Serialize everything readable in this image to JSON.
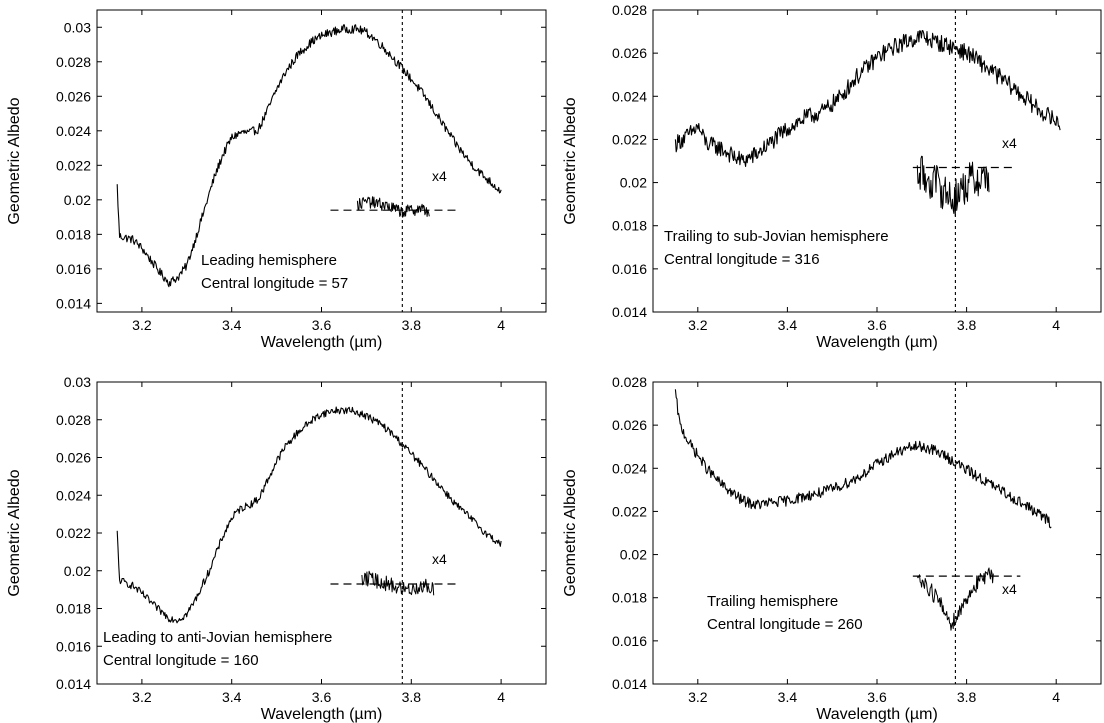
{
  "chart_data": [
    {
      "type": "line",
      "xlabel": "Wavelength (µm)",
      "ylabel": "Geometric Albedo",
      "xlim": [
        3.1,
        4.1
      ],
      "ylim": [
        0.0135,
        0.031
      ],
      "xticks": [
        "3.2",
        "3.4",
        "3.6",
        "3.8",
        "4"
      ],
      "yticks": [
        "0.014",
        "0.016",
        "0.018",
        "0.02",
        "0.022",
        "0.024",
        "0.026",
        "0.028",
        "0.03"
      ],
      "annotation_lines": [
        "Leading hemisphere",
        "Central longitude = 57"
      ],
      "multiplier_label": "x4",
      "vline_x": 3.78,
      "series": [
        {
          "noise": 0.00025,
          "x": [
            3.145,
            3.15,
            3.18,
            3.2,
            3.22,
            3.24,
            3.26,
            3.28,
            3.3,
            3.32,
            3.34,
            3.36,
            3.38,
            3.4,
            3.42,
            3.44,
            3.46,
            3.48,
            3.5,
            3.52,
            3.55,
            3.58,
            3.6,
            3.62,
            3.65,
            3.68,
            3.7,
            3.72,
            3.75,
            3.78,
            3.8,
            3.83,
            3.86,
            3.9,
            3.93,
            3.96,
            4.0
          ],
          "y": [
            0.0208,
            0.0179,
            0.0177,
            0.0172,
            0.0165,
            0.0158,
            0.0152,
            0.0155,
            0.0162,
            0.0178,
            0.0195,
            0.0212,
            0.0226,
            0.0236,
            0.0239,
            0.0239,
            0.0241,
            0.0252,
            0.0264,
            0.0274,
            0.0285,
            0.0292,
            0.0295,
            0.0297,
            0.0299,
            0.0299,
            0.0297,
            0.0293,
            0.0285,
            0.0276,
            0.027,
            0.026,
            0.0248,
            0.0232,
            0.0222,
            0.0214,
            0.0205
          ]
        }
      ],
      "inset": {
        "baseline": 0.0194,
        "baseline_xlim": [
          3.62,
          3.9
        ],
        "noise": 0.00035,
        "x": [
          3.68,
          3.7,
          3.72,
          3.74,
          3.76,
          3.78,
          3.8,
          3.82,
          3.84
        ],
        "y": [
          0.0197,
          0.0199,
          0.0198,
          0.0197,
          0.0195,
          0.0193,
          0.0194,
          0.0195,
          0.0193
        ]
      }
    },
    {
      "type": "line",
      "xlabel": "Wavelength (µm)",
      "ylabel": "Geometric Albedo",
      "xlim": [
        3.1,
        4.1
      ],
      "ylim": [
        0.014,
        0.028
      ],
      "xticks": [
        "3.2",
        "3.4",
        "3.6",
        "3.8",
        "4"
      ],
      "yticks": [
        "0.014",
        "0.016",
        "0.018",
        "0.02",
        "0.022",
        "0.024",
        "0.026",
        "0.028"
      ],
      "annotation_lines": [
        "Trailing to sub-Jovian hemisphere",
        "Central longitude = 316"
      ],
      "multiplier_label": "x4",
      "vline_x": 3.775,
      "series": [
        {
          "noise": 0.0004,
          "x": [
            3.15,
            3.18,
            3.2,
            3.22,
            3.25,
            3.28,
            3.3,
            3.33,
            3.36,
            3.4,
            3.44,
            3.48,
            3.52,
            3.55,
            3.58,
            3.6,
            3.63,
            3.66,
            3.7,
            3.72,
            3.75,
            3.78,
            3.81,
            3.84,
            3.88,
            3.92,
            3.96,
            4.01
          ],
          "y": [
            0.0218,
            0.0222,
            0.0226,
            0.0218,
            0.0216,
            0.0212,
            0.021,
            0.0213,
            0.0218,
            0.0225,
            0.023,
            0.0233,
            0.024,
            0.0248,
            0.0254,
            0.0258,
            0.0262,
            0.0265,
            0.0268,
            0.0266,
            0.0264,
            0.0262,
            0.0259,
            0.0254,
            0.0248,
            0.0241,
            0.0234,
            0.0227
          ]
        }
      ],
      "inset": {
        "baseline": 0.0207,
        "baseline_xlim": [
          3.68,
          3.91
        ],
        "noise": 0.0009,
        "x": [
          3.69,
          3.71,
          3.73,
          3.75,
          3.77,
          3.79,
          3.81,
          3.83,
          3.85
        ],
        "y": [
          0.0205,
          0.0202,
          0.02,
          0.0196,
          0.0192,
          0.0197,
          0.0201,
          0.0202,
          0.0203
        ]
      }
    },
    {
      "type": "line",
      "xlabel": "Wavelength (µm)",
      "ylabel": "Geometric Albedo",
      "xlim": [
        3.1,
        4.1
      ],
      "ylim": [
        0.014,
        0.03
      ],
      "xticks": [
        "3.2",
        "3.4",
        "3.6",
        "3.8",
        "4"
      ],
      "yticks": [
        "0.014",
        "0.016",
        "0.018",
        "0.02",
        "0.022",
        "0.024",
        "0.026",
        "0.028",
        "0.03"
      ],
      "annotation_lines": [
        "Leading to anti-Jovian hemisphere",
        "Central longitude = 160"
      ],
      "multiplier_label": "x4",
      "vline_x": 3.78,
      "series": [
        {
          "noise": 0.0002,
          "x": [
            3.145,
            3.15,
            3.18,
            3.2,
            3.23,
            3.26,
            3.28,
            3.3,
            3.32,
            3.35,
            3.38,
            3.4,
            3.42,
            3.44,
            3.46,
            3.48,
            3.5,
            3.52,
            3.55,
            3.58,
            3.6,
            3.63,
            3.66,
            3.68,
            3.7,
            3.73,
            3.76,
            3.78,
            3.8,
            3.83,
            3.86,
            3.9,
            3.94,
            3.97,
            4.0
          ],
          "y": [
            0.022,
            0.0195,
            0.0192,
            0.0188,
            0.0181,
            0.0175,
            0.0174,
            0.0177,
            0.0185,
            0.02,
            0.0218,
            0.0228,
            0.0233,
            0.0235,
            0.0238,
            0.0248,
            0.0258,
            0.0266,
            0.0274,
            0.028,
            0.0283,
            0.0285,
            0.0285,
            0.0284,
            0.0282,
            0.0278,
            0.0272,
            0.0267,
            0.0262,
            0.0254,
            0.0246,
            0.0235,
            0.0226,
            0.0219,
            0.0214
          ]
        }
      ],
      "inset": {
        "baseline": 0.0193,
        "baseline_xlim": [
          3.62,
          3.9
        ],
        "noise": 0.0004,
        "x": [
          3.69,
          3.71,
          3.73,
          3.75,
          3.77,
          3.79,
          3.81,
          3.83,
          3.85
        ],
        "y": [
          0.0195,
          0.0196,
          0.0194,
          0.0193,
          0.0191,
          0.019,
          0.0191,
          0.0192,
          0.019
        ]
      }
    },
    {
      "type": "line",
      "xlabel": "Wavelength (µm)",
      "ylabel": "Geometric Albedo",
      "xlim": [
        3.1,
        4.1
      ],
      "ylim": [
        0.014,
        0.028
      ],
      "xticks": [
        "3.2",
        "3.4",
        "3.6",
        "3.8",
        "4"
      ],
      "yticks": [
        "0.014",
        "0.016",
        "0.018",
        "0.02",
        "0.022",
        "0.024",
        "0.026",
        "0.028"
      ],
      "annotation_lines": [
        "Trailing hemisphere",
        "Central longitude = 260"
      ],
      "multiplier_label": "x4",
      "vline_x": 3.775,
      "series": [
        {
          "noise": 0.00025,
          "x": [
            3.15,
            3.16,
            3.18,
            3.2,
            3.22,
            3.25,
            3.28,
            3.3,
            3.33,
            3.36,
            3.4,
            3.44,
            3.48,
            3.52,
            3.56,
            3.6,
            3.64,
            3.68,
            3.7,
            3.72,
            3.75,
            3.78,
            3.81,
            3.85,
            3.89,
            3.93,
            3.96,
            3.98,
            3.99
          ],
          "y": [
            0.0275,
            0.026,
            0.0252,
            0.0246,
            0.024,
            0.0233,
            0.0228,
            0.0225,
            0.0223,
            0.0224,
            0.0225,
            0.0227,
            0.0229,
            0.0232,
            0.0236,
            0.0242,
            0.0247,
            0.025,
            0.025,
            0.0249,
            0.0246,
            0.0242,
            0.0238,
            0.0233,
            0.0228,
            0.0223,
            0.0219,
            0.0216,
            0.0214
          ]
        }
      ],
      "inset": {
        "baseline": 0.019,
        "baseline_xlim": [
          3.68,
          3.92
        ],
        "noise": 0.0004,
        "x": [
          3.69,
          3.71,
          3.73,
          3.75,
          3.765,
          3.78,
          3.8,
          3.82,
          3.84,
          3.86
        ],
        "y": [
          0.0189,
          0.0186,
          0.0181,
          0.0174,
          0.0168,
          0.0172,
          0.018,
          0.0186,
          0.0189,
          0.0191
        ]
      }
    }
  ]
}
